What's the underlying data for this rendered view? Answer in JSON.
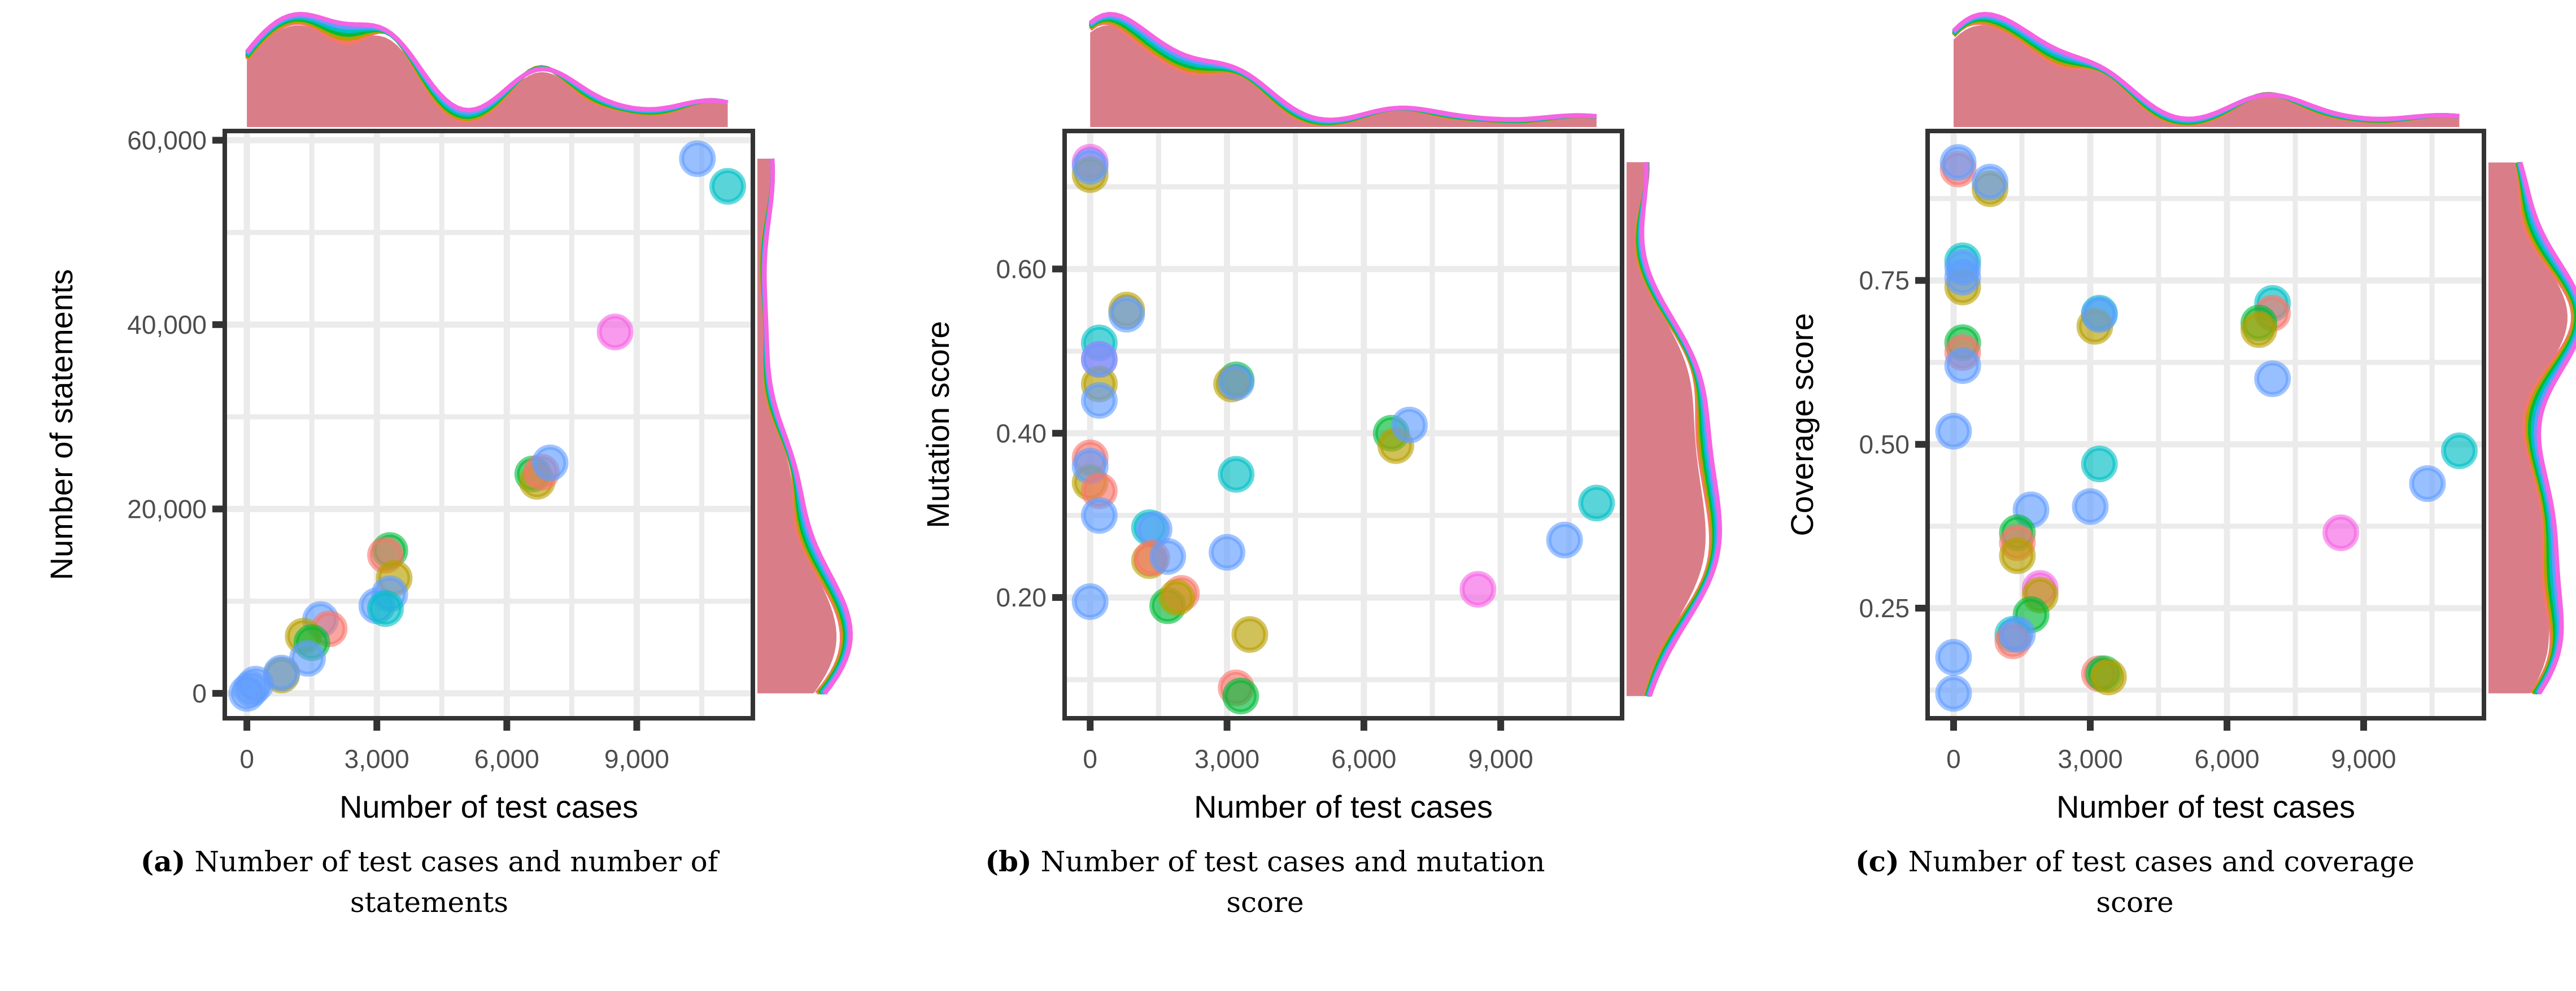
{
  "palette": [
    "#F8766D",
    "#B79F00",
    "#00BA38",
    "#00BFC4",
    "#619CFF",
    "#F564E3"
  ],
  "density_fill": "#D97E88",
  "captions": [
    {
      "letter": "(a)",
      "text": " Number of test cases and number of statements"
    },
    {
      "letter": "(b)",
      "text": " Number of test cases and mutation score"
    },
    {
      "letter": "(c)",
      "text": " Number of test cases and coverage score"
    }
  ],
  "chart_data": [
    {
      "type": "scatter",
      "title": "",
      "xlabel": "Number of test cases",
      "ylabel": "Number of statements",
      "xlim": [
        -510,
        11680
      ],
      "ylim": [
        -2700,
        61000
      ],
      "xticks": [
        0,
        3000,
        6000,
        9000
      ],
      "xtick_labels": [
        "0",
        "3,000",
        "6,000",
        "9,000"
      ],
      "yticks": [
        0,
        20000,
        40000,
        60000
      ],
      "ytick_labels": [
        "0",
        "20,000",
        "40,000",
        "60,000"
      ],
      "xminor": [
        1500,
        4500,
        7500,
        10500
      ],
      "yminor": [
        10000,
        30000,
        50000
      ],
      "grid": true,
      "marginal": "density",
      "points": [
        [
          10400,
          58000,
          4
        ],
        [
          11100,
          55000,
          3
        ],
        [
          8500,
          39200,
          5
        ],
        [
          6600,
          23800,
          2
        ],
        [
          6700,
          23000,
          1
        ],
        [
          6800,
          24000,
          0
        ],
        [
          7000,
          25000,
          4
        ],
        [
          3300,
          15500,
          2
        ],
        [
          3200,
          15000,
          0
        ],
        [
          3400,
          12500,
          1
        ],
        [
          3300,
          10800,
          4
        ],
        [
          3000,
          9500,
          4
        ],
        [
          3200,
          9200,
          3
        ],
        [
          1700,
          8000,
          4
        ],
        [
          1900,
          7000,
          0
        ],
        [
          1300,
          6200,
          1
        ],
        [
          1500,
          5500,
          2
        ],
        [
          1400,
          3800,
          4
        ],
        [
          800,
          2000,
          1
        ],
        [
          800,
          2200,
          4
        ],
        [
          200,
          1000,
          4
        ],
        [
          100,
          500,
          4
        ],
        [
          0,
          0,
          4
        ]
      ]
    },
    {
      "type": "scatter",
      "title": "",
      "xlabel": "Number of test cases",
      "ylabel": "Mutation score",
      "xlim": [
        -560,
        11660
      ],
      "ylim": [
        0.053,
        0.768
      ],
      "xticks": [
        0,
        3000,
        6000,
        9000
      ],
      "xtick_labels": [
        "0",
        "3,000",
        "6,000",
        "9,000"
      ],
      "yticks": [
        0.2,
        0.4,
        0.6
      ],
      "ytick_labels": [
        "0.20",
        "0.40",
        "0.60"
      ],
      "xminor": [
        1500,
        4500,
        7500,
        10500
      ],
      "yminor": [
        0.1,
        0.3,
        0.5,
        0.7
      ],
      "grid": true,
      "marginal": "density",
      "points": [
        [
          0,
          0.73,
          5
        ],
        [
          0,
          0.715,
          1
        ],
        [
          0,
          0.725,
          4
        ],
        [
          800,
          0.55,
          1
        ],
        [
          800,
          0.545,
          4
        ],
        [
          200,
          0.51,
          3
        ],
        [
          200,
          0.49,
          5
        ],
        [
          200,
          0.46,
          1
        ],
        [
          200,
          0.49,
          4
        ],
        [
          200,
          0.44,
          4
        ],
        [
          0,
          0.37,
          0
        ],
        [
          0,
          0.34,
          1
        ],
        [
          0,
          0.36,
          4
        ],
        [
          200,
          0.33,
          0
        ],
        [
          200,
          0.3,
          4
        ],
        [
          1300,
          0.285,
          3
        ],
        [
          1400,
          0.283,
          4
        ],
        [
          1300,
          0.245,
          1
        ],
        [
          1350,
          0.248,
          0
        ],
        [
          1700,
          0.25,
          4
        ],
        [
          1700,
          0.19,
          2
        ],
        [
          2000,
          0.205,
          0
        ],
        [
          1900,
          0.2,
          1
        ],
        [
          0,
          0.195,
          4
        ],
        [
          3000,
          0.255,
          4
        ],
        [
          3200,
          0.35,
          3
        ],
        [
          3200,
          0.465,
          2
        ],
        [
          3100,
          0.46,
          1
        ],
        [
          3200,
          0.462,
          4
        ],
        [
          3500,
          0.155,
          1
        ],
        [
          3200,
          0.09,
          0
        ],
        [
          3300,
          0.08,
          2
        ],
        [
          6600,
          0.4,
          2
        ],
        [
          6700,
          0.385,
          1
        ],
        [
          7000,
          0.41,
          4
        ],
        [
          8500,
          0.21,
          5
        ],
        [
          10400,
          0.27,
          4
        ],
        [
          11100,
          0.315,
          3
        ]
      ]
    },
    {
      "type": "scatter",
      "title": "",
      "xlabel": "Number of test cases",
      "ylabel": "Coverage score",
      "xlim": [
        -570,
        11640
      ],
      "ylim": [
        0.082,
        0.978
      ],
      "xticks": [
        0,
        3000,
        6000,
        9000
      ],
      "xtick_labels": [
        "0",
        "3,000",
        "6,000",
        "9,000"
      ],
      "yticks": [
        0.25,
        0.5,
        0.75
      ],
      "ytick_labels": [
        "0.25",
        "0.50",
        "0.75"
      ],
      "xminor": [
        1500,
        4500,
        7500,
        10500
      ],
      "yminor": [
        0.125,
        0.375,
        0.625,
        0.875
      ],
      "grid": true,
      "marginal": "density",
      "points": [
        [
          100,
          0.92,
          0
        ],
        [
          100,
          0.93,
          4
        ],
        [
          800,
          0.89,
          1
        ],
        [
          800,
          0.9,
          4
        ],
        [
          200,
          0.78,
          3
        ],
        [
          200,
          0.74,
          1
        ],
        [
          200,
          0.77,
          4
        ],
        [
          200,
          0.755,
          4
        ],
        [
          200,
          0.655,
          2
        ],
        [
          200,
          0.64,
          0
        ],
        [
          200,
          0.62,
          4
        ],
        [
          0,
          0.52,
          4
        ],
        [
          3200,
          0.7,
          3
        ],
        [
          3100,
          0.68,
          1
        ],
        [
          3200,
          0.698,
          4
        ],
        [
          7000,
          0.715,
          3
        ],
        [
          7000,
          0.7,
          0
        ],
        [
          6700,
          0.685,
          2
        ],
        [
          6700,
          0.675,
          1
        ],
        [
          7000,
          0.6,
          4
        ],
        [
          3200,
          0.47,
          3
        ],
        [
          3000,
          0.405,
          4
        ],
        [
          1700,
          0.4,
          4
        ],
        [
          1400,
          0.365,
          2
        ],
        [
          1400,
          0.35,
          0
        ],
        [
          1400,
          0.33,
          1
        ],
        [
          1900,
          0.28,
          5
        ],
        [
          1900,
          0.27,
          1
        ],
        [
          1700,
          0.24,
          2
        ],
        [
          1300,
          0.21,
          3
        ],
        [
          1300,
          0.2,
          0
        ],
        [
          1400,
          0.21,
          4
        ],
        [
          0,
          0.175,
          4
        ],
        [
          0,
          0.12,
          4
        ],
        [
          3200,
          0.15,
          0
        ],
        [
          3300,
          0.15,
          2
        ],
        [
          3400,
          0.145,
          1
        ],
        [
          8500,
          0.365,
          5
        ],
        [
          10400,
          0.44,
          4
        ],
        [
          11100,
          0.49,
          3
        ]
      ]
    }
  ]
}
